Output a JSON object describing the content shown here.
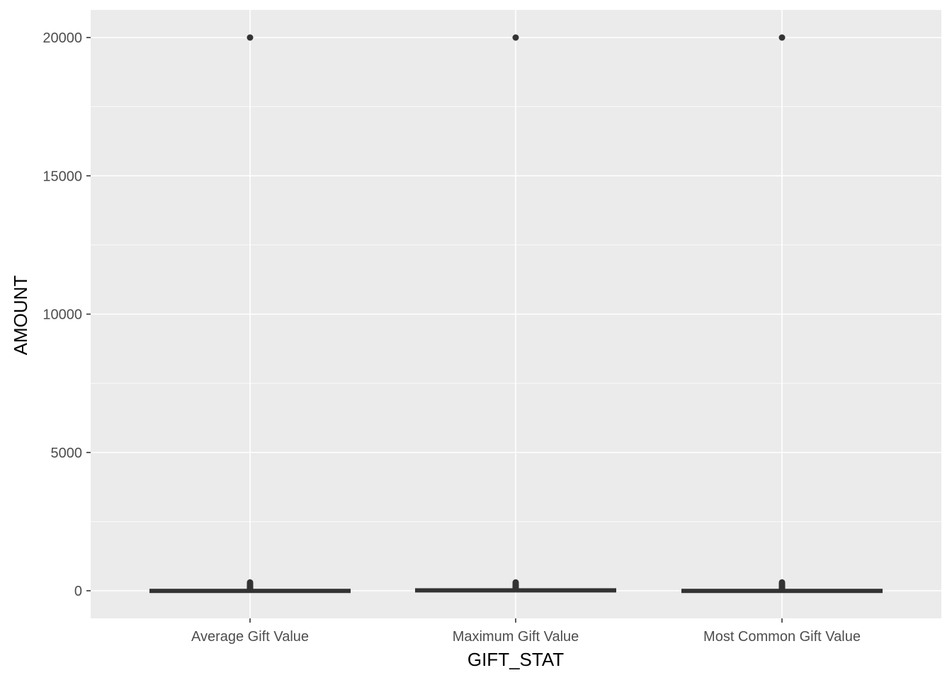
{
  "chart_data": {
    "type": "box",
    "xlabel": "GIFT_STAT",
    "ylabel": "AMOUNT",
    "categories": [
      "Average Gift Value",
      "Maximum Gift Value",
      "Most Common Gift Value"
    ],
    "y_ticks": [
      0,
      5000,
      10000,
      15000,
      20000
    ],
    "y_tick_labels": [
      "0",
      "5000",
      "10000",
      "15000",
      "20000"
    ],
    "ylim": [
      -1000,
      21000
    ],
    "grid": true,
    "legend": "none",
    "colors": {
      "panel": "#ebebeb",
      "grid": "#ffffff",
      "box": "#333333"
    },
    "boxes": [
      {
        "category": "Average Gift Value",
        "min": 0,
        "q1": 5,
        "median": 10,
        "q3": 20,
        "max": 40,
        "outliers": [
          60,
          80,
          100,
          120,
          150,
          180,
          200,
          250,
          300,
          20000
        ]
      },
      {
        "category": "Maximum Gift Value",
        "min": 0,
        "q1": 10,
        "median": 20,
        "q3": 40,
        "max": 80,
        "outliers": [
          100,
          120,
          150,
          180,
          200,
          250,
          300,
          20000
        ]
      },
      {
        "category": "Most Common Gift Value",
        "min": 0,
        "q1": 5,
        "median": 10,
        "q3": 20,
        "max": 40,
        "outliers": [
          60,
          80,
          100,
          120,
          150,
          180,
          200,
          250,
          300,
          20000
        ]
      }
    ]
  }
}
